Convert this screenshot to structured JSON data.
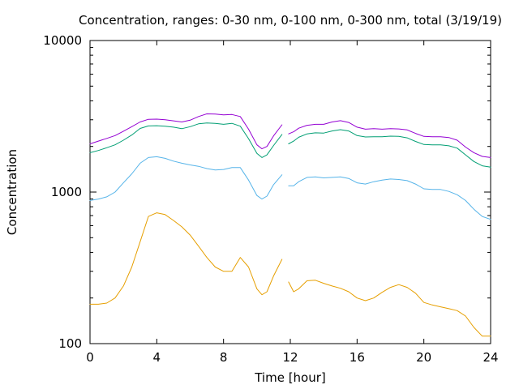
{
  "chart_data": {
    "type": "line",
    "title": "Concentration, ranges: 0-30 nm, 0-100 nm, 0-300 nm, total (3/19/19)",
    "xlabel": "Time [hour]",
    "ylabel": "Concentration",
    "xlim": [
      0,
      24
    ],
    "ylim": [
      100,
      10000
    ],
    "yscale": "log",
    "grid": false,
    "legend": "none",
    "x_ticks": [
      0,
      4,
      8,
      12,
      16,
      20,
      24
    ],
    "x_tick_labels": [
      "0",
      "4",
      "8",
      "12",
      "16",
      "20",
      "24"
    ],
    "y_ticks": [
      100,
      1000,
      10000
    ],
    "y_tick_labels": [
      "100",
      "1000",
      "10000"
    ],
    "gap": [
      11.6,
      11.9
    ],
    "series": [
      {
        "color": "#9400d3",
        "points": [
          [
            0,
            2080
          ],
          [
            0.5,
            2170
          ],
          [
            1,
            2260
          ],
          [
            1.5,
            2360
          ],
          [
            2,
            2520
          ],
          [
            2.5,
            2700
          ],
          [
            3,
            2900
          ],
          [
            3.5,
            3020
          ],
          [
            4,
            3030
          ],
          [
            4.5,
            3000
          ],
          [
            5,
            2950
          ],
          [
            5.5,
            2900
          ],
          [
            6,
            2980
          ],
          [
            6.5,
            3150
          ],
          [
            7,
            3280
          ],
          [
            7.5,
            3270
          ],
          [
            8,
            3230
          ],
          [
            8.5,
            3250
          ],
          [
            9,
            3150
          ],
          [
            9.5,
            2600
          ],
          [
            10,
            2050
          ],
          [
            10.3,
            1930
          ],
          [
            10.6,
            2000
          ],
          [
            11,
            2350
          ],
          [
            11.5,
            2780
          ],
          [
            11.9,
            2420
          ],
          [
            12.2,
            2500
          ],
          [
            12.5,
            2640
          ],
          [
            13,
            2760
          ],
          [
            13.5,
            2800
          ],
          [
            14,
            2800
          ],
          [
            14.5,
            2900
          ],
          [
            15,
            2960
          ],
          [
            15.5,
            2880
          ],
          [
            16,
            2680
          ],
          [
            16.5,
            2600
          ],
          [
            17,
            2620
          ],
          [
            17.5,
            2600
          ],
          [
            18,
            2620
          ],
          [
            18.5,
            2610
          ],
          [
            19,
            2570
          ],
          [
            19.5,
            2440
          ],
          [
            20,
            2330
          ],
          [
            20.5,
            2320
          ],
          [
            21,
            2320
          ],
          [
            21.5,
            2290
          ],
          [
            22,
            2200
          ],
          [
            22.5,
            1980
          ],
          [
            23,
            1820
          ],
          [
            23.5,
            1720
          ],
          [
            24,
            1690
          ]
        ]
      },
      {
        "color": "#009e73",
        "points": [
          [
            0,
            1820
          ],
          [
            0.5,
            1880
          ],
          [
            1,
            1960
          ],
          [
            1.5,
            2050
          ],
          [
            2,
            2200
          ],
          [
            2.5,
            2380
          ],
          [
            3,
            2630
          ],
          [
            3.5,
            2730
          ],
          [
            4,
            2740
          ],
          [
            4.5,
            2720
          ],
          [
            5,
            2680
          ],
          [
            5.5,
            2620
          ],
          [
            6,
            2700
          ],
          [
            6.5,
            2820
          ],
          [
            7,
            2860
          ],
          [
            7.5,
            2840
          ],
          [
            8,
            2800
          ],
          [
            8.5,
            2840
          ],
          [
            9,
            2720
          ],
          [
            9.5,
            2250
          ],
          [
            10,
            1800
          ],
          [
            10.3,
            1690
          ],
          [
            10.6,
            1760
          ],
          [
            11,
            2030
          ],
          [
            11.5,
            2400
          ],
          [
            11.9,
            2080
          ],
          [
            12.2,
            2170
          ],
          [
            12.5,
            2300
          ],
          [
            13,
            2420
          ],
          [
            13.5,
            2460
          ],
          [
            14,
            2450
          ],
          [
            14.5,
            2530
          ],
          [
            15,
            2580
          ],
          [
            15.5,
            2530
          ],
          [
            16,
            2360
          ],
          [
            16.5,
            2310
          ],
          [
            17,
            2320
          ],
          [
            17.5,
            2320
          ],
          [
            18,
            2340
          ],
          [
            18.5,
            2330
          ],
          [
            19,
            2280
          ],
          [
            19.5,
            2160
          ],
          [
            20,
            2060
          ],
          [
            20.5,
            2050
          ],
          [
            21,
            2050
          ],
          [
            21.5,
            2020
          ],
          [
            22,
            1950
          ],
          [
            22.5,
            1760
          ],
          [
            23,
            1590
          ],
          [
            23.5,
            1490
          ],
          [
            24,
            1460
          ]
        ]
      },
      {
        "color": "#56b4e9",
        "points": [
          [
            0,
            880
          ],
          [
            0.5,
            900
          ],
          [
            1,
            930
          ],
          [
            1.5,
            1000
          ],
          [
            2,
            1150
          ],
          [
            2.5,
            1320
          ],
          [
            3,
            1550
          ],
          [
            3.5,
            1690
          ],
          [
            4,
            1710
          ],
          [
            4.5,
            1670
          ],
          [
            5,
            1600
          ],
          [
            5.5,
            1550
          ],
          [
            6,
            1510
          ],
          [
            6.5,
            1480
          ],
          [
            7,
            1430
          ],
          [
            7.5,
            1400
          ],
          [
            8,
            1410
          ],
          [
            8.5,
            1450
          ],
          [
            9,
            1450
          ],
          [
            9.5,
            1200
          ],
          [
            10,
            950
          ],
          [
            10.3,
            900
          ],
          [
            10.6,
            940
          ],
          [
            11,
            1120
          ],
          [
            11.5,
            1300
          ],
          [
            11.9,
            1100
          ],
          [
            12.2,
            1100
          ],
          [
            12.5,
            1170
          ],
          [
            13,
            1250
          ],
          [
            13.5,
            1260
          ],
          [
            14,
            1240
          ],
          [
            14.5,
            1250
          ],
          [
            15,
            1260
          ],
          [
            15.5,
            1230
          ],
          [
            16,
            1150
          ],
          [
            16.5,
            1130
          ],
          [
            17,
            1170
          ],
          [
            17.5,
            1200
          ],
          [
            18,
            1220
          ],
          [
            18.5,
            1210
          ],
          [
            19,
            1190
          ],
          [
            19.5,
            1130
          ],
          [
            20,
            1050
          ],
          [
            20.5,
            1040
          ],
          [
            21,
            1040
          ],
          [
            21.5,
            1010
          ],
          [
            22,
            960
          ],
          [
            22.5,
            880
          ],
          [
            23,
            770
          ],
          [
            23.5,
            690
          ],
          [
            24,
            660
          ]
        ]
      },
      {
        "color": "#e69f00",
        "points": [
          [
            0,
            182
          ],
          [
            0.5,
            182
          ],
          [
            1,
            185
          ],
          [
            1.5,
            200
          ],
          [
            2,
            240
          ],
          [
            2.5,
            320
          ],
          [
            3,
            470
          ],
          [
            3.5,
            690
          ],
          [
            4,
            730
          ],
          [
            4.5,
            710
          ],
          [
            5,
            650
          ],
          [
            5.5,
            590
          ],
          [
            6,
            520
          ],
          [
            6.5,
            440
          ],
          [
            7,
            370
          ],
          [
            7.5,
            320
          ],
          [
            8,
            300
          ],
          [
            8.5,
            300
          ],
          [
            9,
            370
          ],
          [
            9.5,
            320
          ],
          [
            10,
            230
          ],
          [
            10.3,
            210
          ],
          [
            10.6,
            220
          ],
          [
            11,
            280
          ],
          [
            11.5,
            360
          ],
          [
            11.9,
            255
          ],
          [
            12.2,
            220
          ],
          [
            12.5,
            230
          ],
          [
            13,
            260
          ],
          [
            13.5,
            262
          ],
          [
            14,
            250
          ],
          [
            14.5,
            240
          ],
          [
            15,
            232
          ],
          [
            15.5,
            220
          ],
          [
            16,
            200
          ],
          [
            16.5,
            192
          ],
          [
            17,
            200
          ],
          [
            17.5,
            218
          ],
          [
            18,
            235
          ],
          [
            18.5,
            245
          ],
          [
            19,
            235
          ],
          [
            19.5,
            215
          ],
          [
            20,
            187
          ],
          [
            20.5,
            180
          ],
          [
            21,
            175
          ],
          [
            21.5,
            170
          ],
          [
            22,
            165
          ],
          [
            22.5,
            152
          ],
          [
            23,
            128
          ],
          [
            23.5,
            112
          ],
          [
            24,
            112
          ]
        ]
      }
    ]
  }
}
